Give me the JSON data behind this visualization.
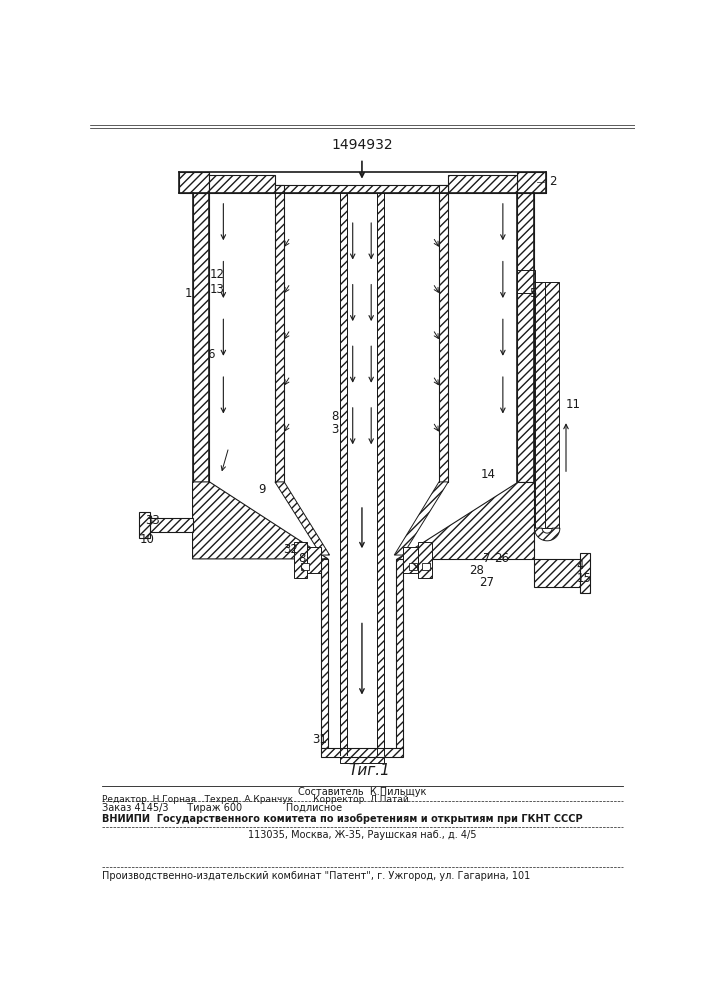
{
  "patent_number": "1494932",
  "fig_label": "Τиг.1",
  "bg_color": "#ffffff",
  "line_color": "#1a1a1a",
  "footer_line1": "Составитель  К.Пильщук",
  "footer_line2": "Редактор  Н.Горная   Техред  А.Кранчук       Корректор  Л.Патай",
  "footer_line3": "Заказ 4145/3      Тираж 600              Подлисное",
  "footer_line4": "ВНИИПИ  Государственного комитета по изобретениям и открытиям при ГКНТ СССР",
  "footer_line5": "113035, Москва, Ж-35, Раушская наб., д. 4/5",
  "footer_line6": "Производственно-издательский комбинат \"Патент\", г. Ужгород, ул. Гагарина, 101"
}
